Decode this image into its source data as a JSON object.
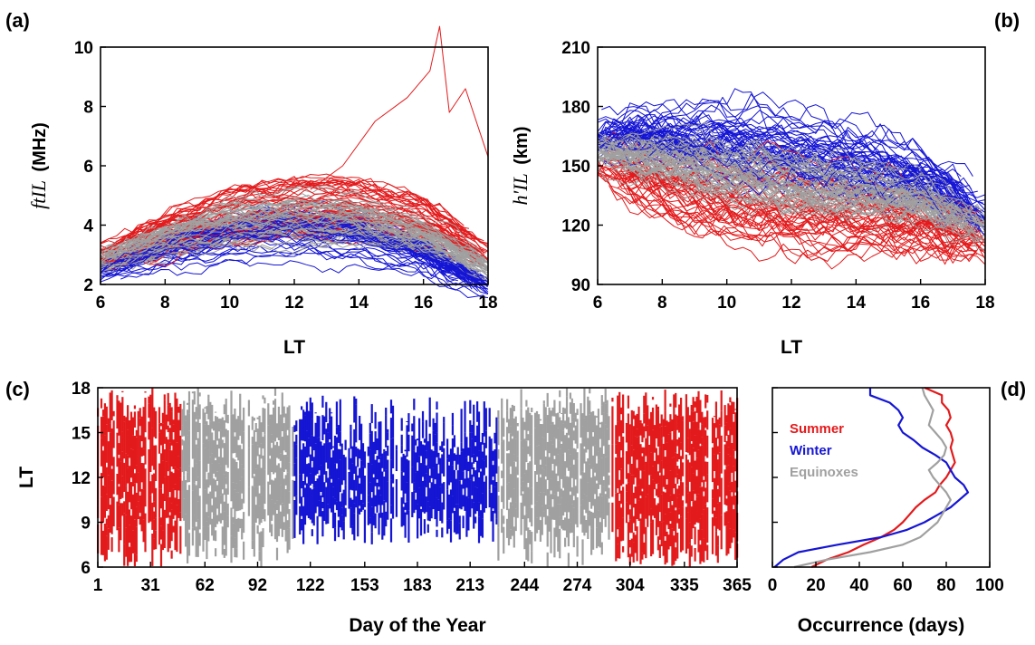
{
  "colors": {
    "Summer": "#e31a1c",
    "Winter": "#1515d4",
    "Equinoxes": "#a0a0a0"
  },
  "panels": {
    "a": {
      "letter": "(a)",
      "xlabel": "LT",
      "ylabel_italic": "ftIL",
      "ylabel_unit": "(MHz)"
    },
    "b": {
      "letter": "(b)",
      "xlabel": "LT",
      "ylabel_italic": "h'IL",
      "ylabel_unit": "(km)"
    },
    "c": {
      "letter": "(c)",
      "xlabel": "Day of the Year",
      "ylabel": "LT"
    },
    "d": {
      "letter": "(d)",
      "xlabel": "Occurrence (days)"
    }
  },
  "legend": [
    "Summer",
    "Winter",
    "Equinoxes"
  ],
  "chart_data": [
    {
      "id": "a",
      "type": "line",
      "xlabel": "LT",
      "ylabel": "ftIL (MHz)",
      "xlim": [
        6,
        18
      ],
      "ylim": [
        2,
        10
      ],
      "xticks": [
        6,
        8,
        10,
        12,
        14,
        16,
        18
      ],
      "yticks": [
        2,
        4,
        6,
        8,
        10
      ],
      "series": [
        {
          "name": "Summer",
          "color": "#e31a1c",
          "count": 42,
          "median_x": [
            6,
            8,
            10,
            12,
            14,
            16,
            18
          ],
          "median_y": [
            2.9,
            3.7,
            4.3,
            4.6,
            4.6,
            4.2,
            3.0
          ],
          "peak_x": 16.5,
          "peak_y": 10.7
        },
        {
          "name": "Winter",
          "color": "#1515d4",
          "count": 55,
          "median_x": [
            6,
            8,
            10,
            12,
            14,
            16,
            18
          ],
          "median_y": [
            2.5,
            3.2,
            3.7,
            3.9,
            3.7,
            3.0,
            1.9
          ]
        },
        {
          "name": "Equinoxes",
          "color": "#a0a0a0",
          "count": 55,
          "median_x": [
            6,
            8,
            10,
            12,
            14,
            16,
            18
          ],
          "median_y": [
            2.8,
            3.5,
            4.0,
            4.2,
            4.1,
            3.6,
            2.6
          ]
        }
      ]
    },
    {
      "id": "b",
      "type": "line",
      "xlabel": "LT",
      "ylabel": "h'IL (km)",
      "xlim": [
        6,
        18
      ],
      "ylim": [
        90,
        210
      ],
      "xticks": [
        6,
        8,
        10,
        12,
        14,
        16,
        18
      ],
      "yticks": [
        90,
        120,
        150,
        180,
        210
      ],
      "series": [
        {
          "name": "Summer",
          "color": "#e31a1c",
          "count": 42,
          "median_x": [
            6,
            8,
            10,
            12,
            14,
            16,
            18
          ],
          "median_y": [
            150,
            140,
            132,
            128,
            124,
            120,
            112
          ]
        },
        {
          "name": "Winter",
          "color": "#1515d4",
          "count": 55,
          "median_x": [
            6,
            8,
            10,
            12,
            14,
            16,
            18
          ],
          "median_y": [
            165,
            165,
            162,
            158,
            152,
            145,
            125
          ]
        },
        {
          "name": "Equinoxes",
          "color": "#a0a0a0",
          "count": 55,
          "median_x": [
            6,
            8,
            10,
            12,
            14,
            16,
            18
          ],
          "median_y": [
            158,
            155,
            150,
            145,
            140,
            135,
            120
          ]
        }
      ]
    },
    {
      "id": "c",
      "type": "heatmap",
      "xlabel": "Day of the Year",
      "ylabel": "LT",
      "xlim": [
        1,
        365
      ],
      "ylim": [
        6,
        18
      ],
      "xticks": [
        1,
        31,
        62,
        92,
        122,
        153,
        183,
        213,
        244,
        274,
        304,
        335,
        365
      ],
      "yticks": [
        6,
        9,
        12,
        15,
        18
      ],
      "season_ranges": [
        {
          "season": "Summer",
          "start": 1,
          "end": 49
        },
        {
          "season": "Equinoxes",
          "start": 49,
          "end": 113
        },
        {
          "season": "Winter",
          "start": 113,
          "end": 229
        },
        {
          "season": "Equinoxes",
          "start": 229,
          "end": 293
        },
        {
          "season": "Summer",
          "start": 293,
          "end": 365
        }
      ]
    },
    {
      "id": "d",
      "type": "line",
      "xlabel": "Occurrence (days)",
      "xlim": [
        0,
        100
      ],
      "ylim": [
        6,
        18
      ],
      "xticks": [
        0,
        20,
        40,
        60,
        80,
        100
      ],
      "series": [
        {
          "name": "Summer",
          "color": "#e31a1c",
          "lt": [
            6,
            6.5,
            7,
            7.5,
            8,
            8.5,
            9,
            9.5,
            10,
            10.5,
            11,
            11.5,
            12,
            12.5,
            13,
            13.5,
            14,
            14.5,
            15,
            15.5,
            16,
            16.5,
            17,
            17.5,
            18
          ],
          "values": [
            18,
            25,
            35,
            42,
            50,
            56,
            60,
            63,
            66,
            70,
            75,
            77,
            80,
            82,
            84,
            83,
            82,
            83,
            82,
            80,
            82,
            81,
            78,
            78,
            70
          ]
        },
        {
          "name": "Winter",
          "color": "#1515d4",
          "lt": [
            6,
            6.5,
            7,
            7.5,
            8,
            8.5,
            9,
            9.5,
            10,
            10.5,
            11,
            11.5,
            12,
            12.5,
            13,
            13.5,
            14,
            14.5,
            15,
            15.5,
            16,
            16.5,
            17,
            17.5,
            18
          ],
          "values": [
            1,
            5,
            12,
            30,
            50,
            62,
            70,
            76,
            82,
            86,
            90,
            88,
            84,
            82,
            80,
            75,
            69,
            65,
            60,
            58,
            60,
            58,
            54,
            45,
            45
          ]
        },
        {
          "name": "Equinoxes",
          "color": "#a0a0a0",
          "lt": [
            6,
            6.5,
            7,
            7.5,
            8,
            8.5,
            9,
            9.5,
            10,
            10.5,
            11,
            11.5,
            12,
            12.5,
            13,
            13.5,
            14,
            14.5,
            15,
            15.5,
            16,
            16.5,
            17,
            17.5,
            18
          ],
          "values": [
            10,
            25,
            45,
            60,
            68,
            72,
            76,
            78,
            80,
            82,
            80,
            77,
            74,
            72,
            76,
            79,
            80,
            78,
            75,
            72,
            73,
            74,
            72,
            70,
            69
          ]
        }
      ]
    }
  ]
}
